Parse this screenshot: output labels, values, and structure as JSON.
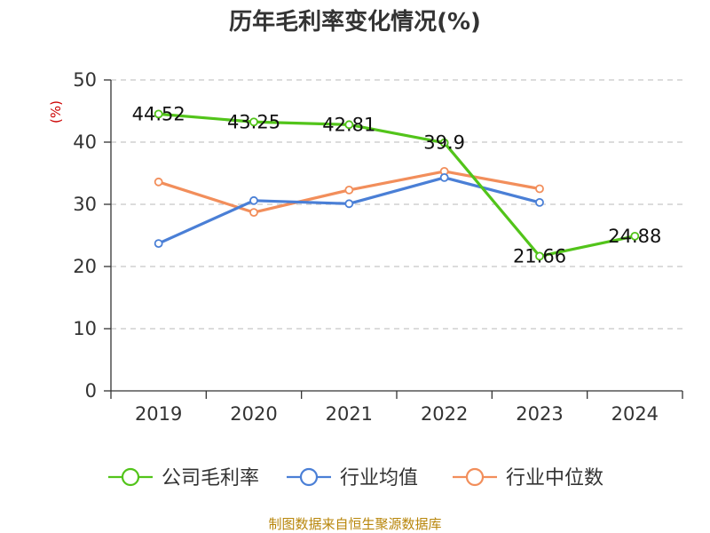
{
  "chart_data": {
    "type": "line",
    "title": "历年毛利率变化情况(%)",
    "ylabel": "(%)",
    "xlabel": "",
    "categories": [
      "2019",
      "2020",
      "2021",
      "2022",
      "2023",
      "2024"
    ],
    "ylim": [
      0,
      50
    ],
    "yticks": [
      0,
      10,
      20,
      30,
      40,
      50
    ],
    "grid": true,
    "legend_position": "bottom",
    "series": [
      {
        "name": "公司毛利率",
        "color": "#52c41a",
        "values": [
          44.52,
          43.25,
          42.81,
          39.9,
          21.66,
          24.88
        ],
        "labels": [
          "44.52",
          "43.25",
          "42.81",
          "39.9",
          "21.66",
          "24.88"
        ]
      },
      {
        "name": "行业均值",
        "color": "#4a7fd6",
        "values": [
          23.7,
          30.6,
          30.1,
          34.3,
          30.3,
          null
        ]
      },
      {
        "name": "行业中位数",
        "color": "#f28e5b",
        "values": [
          33.6,
          28.7,
          32.3,
          35.3,
          32.5,
          null
        ]
      }
    ]
  },
  "footer": {
    "source": "制图数据来自恒生聚源数据库"
  }
}
